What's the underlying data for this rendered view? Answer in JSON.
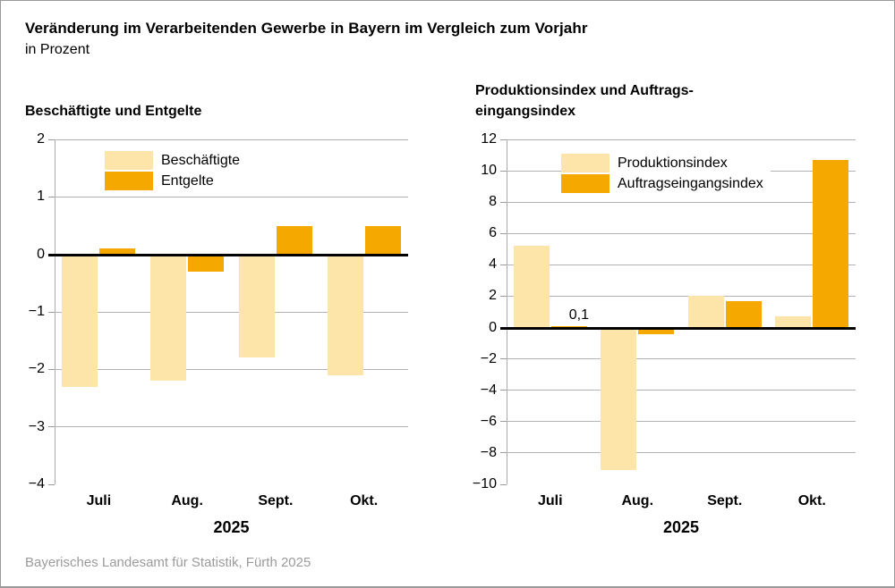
{
  "header": {
    "title": "Veränderung im Verarbeitenden Gewerbe in Bayern im Vergleich zum Vorjahr",
    "subtitle": "in Prozent"
  },
  "footer": {
    "source": "Bayerisches Landesamt für Statistik, Fürth 2025"
  },
  "colors": {
    "series_light": "#FDE5A9",
    "series_orange": "#F5A800",
    "grid": "#B3B3B3",
    "axis": "#ABABAB",
    "zero_line": "#000000",
    "footer_text": "#9B9B9B"
  },
  "chart_data": [
    {
      "type": "bar",
      "title": "Beschäftigte und Entgelte",
      "title_lines": [
        "Beschäftigte und Entgelte"
      ],
      "categories": [
        "Juli",
        "Aug.",
        "Sept.",
        "Okt."
      ],
      "xlabel": "2025",
      "ylabel": "",
      "ylim": [
        -4,
        2
      ],
      "yticks": [
        2,
        1,
        0,
        -1,
        -2,
        -3,
        -4
      ],
      "grid": true,
      "legend_position": "top-left-inside",
      "series": [
        {
          "name": "Beschäftigte",
          "color": "#FDE5A9",
          "values": [
            -2.3,
            -2.2,
            -1.8,
            -2.1
          ]
        },
        {
          "name": "Entgelte",
          "color": "#F5A800",
          "values": [
            0.1,
            -0.3,
            0.5,
            0.5
          ]
        }
      ],
      "annotations": []
    },
    {
      "type": "bar",
      "title": "Produktionsindex und Auftragseingangsindex",
      "title_lines": [
        "Produktionsindex und Auftrags-",
        "eingangsindex"
      ],
      "categories": [
        "Juli",
        "Aug.",
        "Sept.",
        "Okt."
      ],
      "xlabel": "2025",
      "ylabel": "",
      "ylim": [
        -10,
        12
      ],
      "yticks": [
        12,
        10,
        8,
        6,
        4,
        2,
        0,
        -2,
        -4,
        -6,
        -8,
        -10
      ],
      "grid": true,
      "legend_position": "top-left-inside",
      "series": [
        {
          "name": "Produktionsindex",
          "color": "#FDE5A9",
          "values": [
            5.2,
            -9.1,
            2.0,
            0.7
          ]
        },
        {
          "name": "Auftragseingangsindex",
          "color": "#F5A800",
          "values": [
            0.1,
            -0.4,
            1.7,
            10.7
          ]
        }
      ],
      "annotations": [
        {
          "text": "0,1",
          "series": 1,
          "category": 0
        }
      ]
    }
  ]
}
